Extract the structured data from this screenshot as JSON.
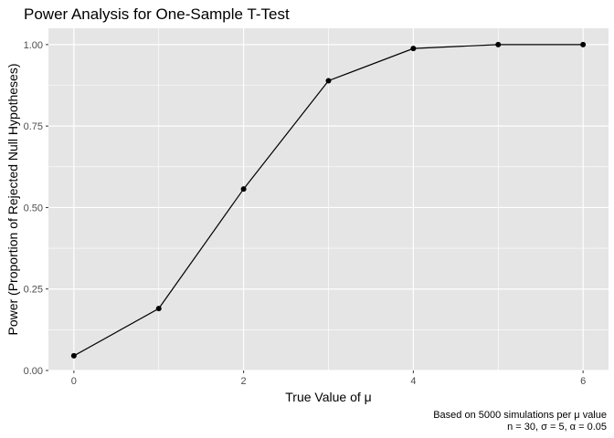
{
  "chart_data": {
    "type": "line",
    "title": "Power Analysis for One-Sample T-Test",
    "xlabel": "True Value of μ",
    "ylabel": "Power (Proportion of Rejected Null Hypotheses)",
    "caption_lines": [
      "Based on 5000 simulations per μ value",
      "n = 30, σ = 5, α = 0.05"
    ],
    "x": [
      0,
      1,
      2,
      3,
      4,
      5,
      6
    ],
    "series": [
      {
        "values": [
          0.045,
          0.19,
          0.557,
          0.889,
          0.988,
          1.0,
          1.0
        ]
      }
    ],
    "xlim": [
      -0.3,
      6.3
    ],
    "ylim": [
      0,
      1.05
    ],
    "x_ticks": [
      0,
      2,
      4,
      6
    ],
    "x_tick_labels": [
      "0",
      "2",
      "4",
      "6"
    ],
    "y_ticks": [
      0,
      0.25,
      0.5,
      0.75,
      1.0
    ],
    "y_tick_labels": [
      "0.00",
      "0.25",
      "0.50",
      "0.75",
      "1.00"
    ],
    "grid": true,
    "colors": {
      "panel_background": "#e5e5e5",
      "grid": "#ffffff",
      "line": "#000000",
      "points": "#000000"
    }
  }
}
